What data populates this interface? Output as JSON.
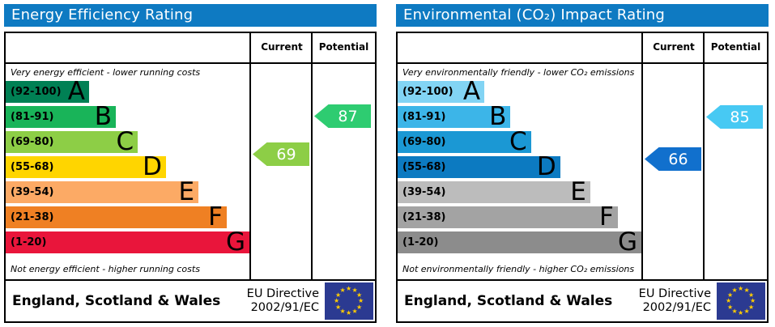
{
  "columns": {
    "current": "Current",
    "potential": "Potential"
  },
  "header_bg": "#0e7ac2",
  "footer": {
    "region": "England, Scotland & Wales",
    "directive_line1": "EU Directive",
    "directive_line2": "2002/91/EC",
    "flag_bg": "#2b3a91",
    "star_color": "#ffcc00",
    "star_count": 12
  },
  "charts": [
    {
      "title": "Energy Efficiency Rating",
      "top_note": "Very energy efficient - lower running costs",
      "bottom_note": "Not energy efficient - higher running costs",
      "bands": [
        {
          "letter": "A",
          "range": "(92-100)",
          "color": "#008054",
          "width_pct": 34.2
        },
        {
          "letter": "B",
          "range": "(81-91)",
          "color": "#19b459",
          "width_pct": 45.2
        },
        {
          "letter": "C",
          "range": "(69-80)",
          "color": "#8dce46",
          "width_pct": 54.2
        },
        {
          "letter": "D",
          "range": "(55-68)",
          "color": "#ffd500",
          "width_pct": 65.8
        },
        {
          "letter": "E",
          "range": "(39-54)",
          "color": "#fcaa65",
          "width_pct": 79.1
        },
        {
          "letter": "F",
          "range": "(21-38)",
          "color": "#ef8023",
          "width_pct": 90.7
        },
        {
          "letter": "G",
          "range": "(1-20)",
          "color": "#e9153b",
          "width_pct": 100
        }
      ],
      "current": {
        "value": 69,
        "color": "#8dce46"
      },
      "potential": {
        "value": 87,
        "color": "#2ecc71"
      }
    },
    {
      "title": "Environmental (CO₂) Impact Rating",
      "top_note": "Very environmentally friendly - lower CO₂ emissions",
      "bottom_note": "Not environmentally friendly - higher CO₂ emissions",
      "bands": [
        {
          "letter": "A",
          "range": "(92-100)",
          "color": "#82d4f4",
          "width_pct": 35.6
        },
        {
          "letter": "B",
          "range": "(81-91)",
          "color": "#3cb5e8",
          "width_pct": 46.3
        },
        {
          "letter": "C",
          "range": "(69-80)",
          "color": "#1b98d4",
          "width_pct": 54.7
        },
        {
          "letter": "D",
          "range": "(55-68)",
          "color": "#0c7ac1",
          "width_pct": 66.7
        },
        {
          "letter": "E",
          "range": "(39-54)",
          "color": "#bcbcbc",
          "width_pct": 79.0
        },
        {
          "letter": "F",
          "range": "(21-38)",
          "color": "#a3a3a3",
          "width_pct": 90.3
        },
        {
          "letter": "G",
          "range": "(1-20)",
          "color": "#8c8c8c",
          "width_pct": 100
        }
      ],
      "current": {
        "value": 66,
        "color": "#1170cd"
      },
      "potential": {
        "value": 85,
        "color": "#47c9f3"
      }
    }
  ],
  "chart_data": [
    {
      "type": "bar",
      "title": "Energy Efficiency Rating",
      "categories": [
        "A",
        "B",
        "C",
        "D",
        "E",
        "F",
        "G"
      ],
      "band_ranges": [
        "92-100",
        "81-91",
        "69-80",
        "55-68",
        "39-54",
        "21-38",
        "1-20"
      ],
      "band_colors": [
        "#008054",
        "#19b459",
        "#8dce46",
        "#ffd500",
        "#fcaa65",
        "#ef8023",
        "#e9153b"
      ],
      "bar_length_pct": [
        34.2,
        45.2,
        54.2,
        65.8,
        79.1,
        90.7,
        100
      ],
      "current": 69,
      "current_band": "C",
      "potential": 87,
      "potential_band": "B",
      "annotations": [
        "Very energy efficient - lower running costs",
        "Not energy efficient - higher running costs"
      ],
      "region": "England, Scotland & Wales",
      "directive": "EU Directive 2002/91/EC"
    },
    {
      "type": "bar",
      "title": "Environmental (CO₂) Impact Rating",
      "categories": [
        "A",
        "B",
        "C",
        "D",
        "E",
        "F",
        "G"
      ],
      "band_ranges": [
        "92-100",
        "81-91",
        "69-80",
        "55-68",
        "39-54",
        "21-38",
        "1-20"
      ],
      "band_colors": [
        "#82d4f4",
        "#3cb5e8",
        "#1b98d4",
        "#0c7ac1",
        "#bcbcbc",
        "#a3a3a3",
        "#8c8c8c"
      ],
      "bar_length_pct": [
        35.6,
        46.3,
        54.7,
        66.7,
        79.0,
        90.3,
        100
      ],
      "current": 66,
      "current_band": "D",
      "potential": 85,
      "potential_band": "B",
      "annotations": [
        "Very environmentally friendly - lower CO₂ emissions",
        "Not environmentally friendly - higher CO₂ emissions"
      ],
      "region": "England, Scotland & Wales",
      "directive": "EU Directive 2002/91/EC"
    }
  ]
}
